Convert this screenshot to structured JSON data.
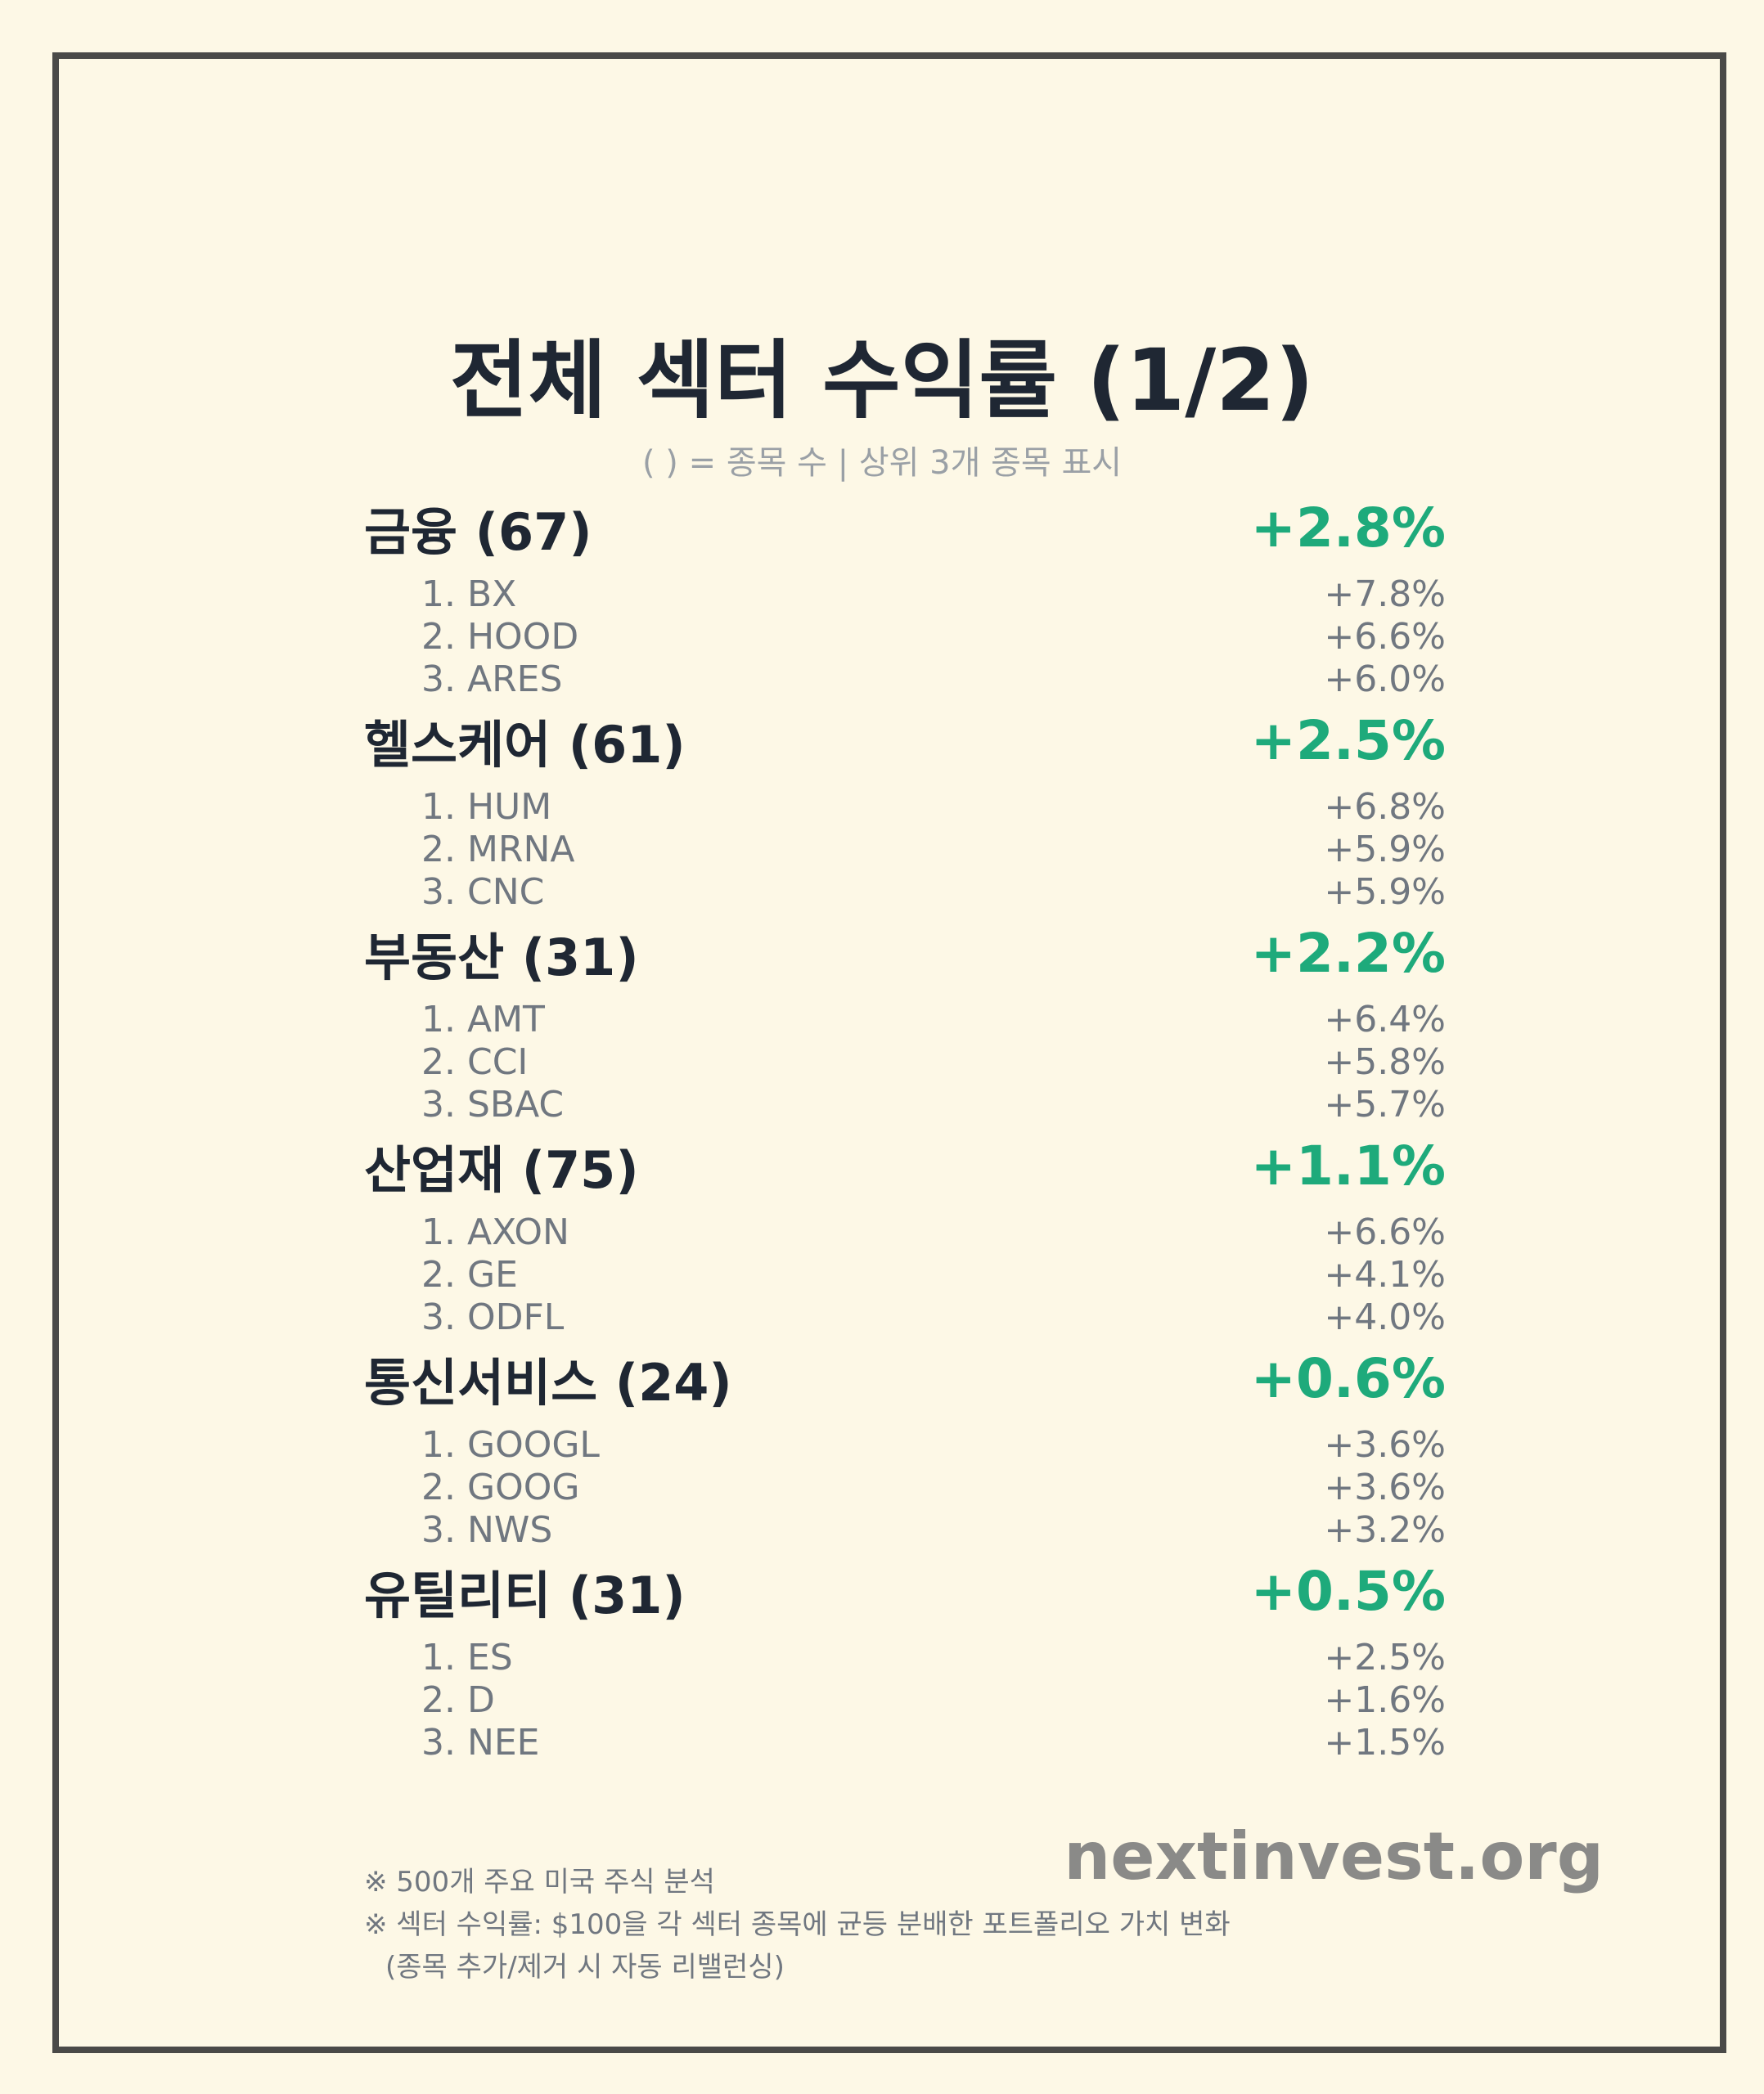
{
  "title": "전체 섹터 수익률 (1/2)",
  "subtitle": "( ) = 종목 수 | 상위 3개 종목 표시",
  "colors": {
    "positive": "#1eaa7b",
    "background": "#fdf8e6",
    "frame": "#4a4a48"
  },
  "sectors": [
    {
      "name": "금융 (67)",
      "return": "+2.8%",
      "stocks": [
        {
          "name": "1. BX",
          "return": "+7.8%"
        },
        {
          "name": "2. HOOD",
          "return": "+6.6%"
        },
        {
          "name": "3. ARES",
          "return": "+6.0%"
        }
      ]
    },
    {
      "name": "헬스케어 (61)",
      "return": "+2.5%",
      "stocks": [
        {
          "name": "1. HUM",
          "return": "+6.8%"
        },
        {
          "name": "2. MRNA",
          "return": "+5.9%"
        },
        {
          "name": "3. CNC",
          "return": "+5.9%"
        }
      ]
    },
    {
      "name": "부동산 (31)",
      "return": "+2.2%",
      "stocks": [
        {
          "name": "1. AMT",
          "return": "+6.4%"
        },
        {
          "name": "2. CCI",
          "return": "+5.8%"
        },
        {
          "name": "3. SBAC",
          "return": "+5.7%"
        }
      ]
    },
    {
      "name": "산업재 (75)",
      "return": "+1.1%",
      "stocks": [
        {
          "name": "1. AXON",
          "return": "+6.6%"
        },
        {
          "name": "2. GE",
          "return": "+4.1%"
        },
        {
          "name": "3. ODFL",
          "return": "+4.0%"
        }
      ]
    },
    {
      "name": "통신서비스 (24)",
      "return": "+0.6%",
      "stocks": [
        {
          "name": "1. GOOGL",
          "return": "+3.6%"
        },
        {
          "name": "2. GOOG",
          "return": "+3.6%"
        },
        {
          "name": "3. NWS",
          "return": "+3.2%"
        }
      ]
    },
    {
      "name": "유틸리티 (31)",
      "return": "+0.5%",
      "stocks": [
        {
          "name": "1. ES",
          "return": "+2.5%"
        },
        {
          "name": "2. D",
          "return": "+1.6%"
        },
        {
          "name": "3. NEE",
          "return": "+1.5%"
        }
      ]
    }
  ],
  "brand": "nextinvest.org",
  "notes": {
    "line1": "※ 500개 주요 미국 주식 분석",
    "line2": "※ 섹터 수익률: $100을 각 섹터 종목에 균등 분배한 포트폴리오 가치 변화",
    "line3": "(종목 추가/제거 시 자동 리밸런싱)"
  }
}
